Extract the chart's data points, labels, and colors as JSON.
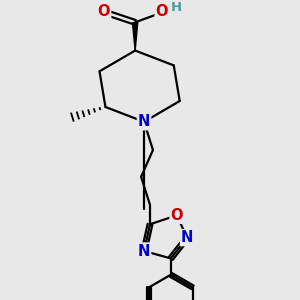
{
  "bg_color": "#e8e8e8",
  "atom_colors": {
    "C": "#000000",
    "N": "#0000cc",
    "O": "#cc0000",
    "H": "#4a9a9a"
  },
  "bond_color": "#000000",
  "line_width": 1.6,
  "font_size": 10.5
}
